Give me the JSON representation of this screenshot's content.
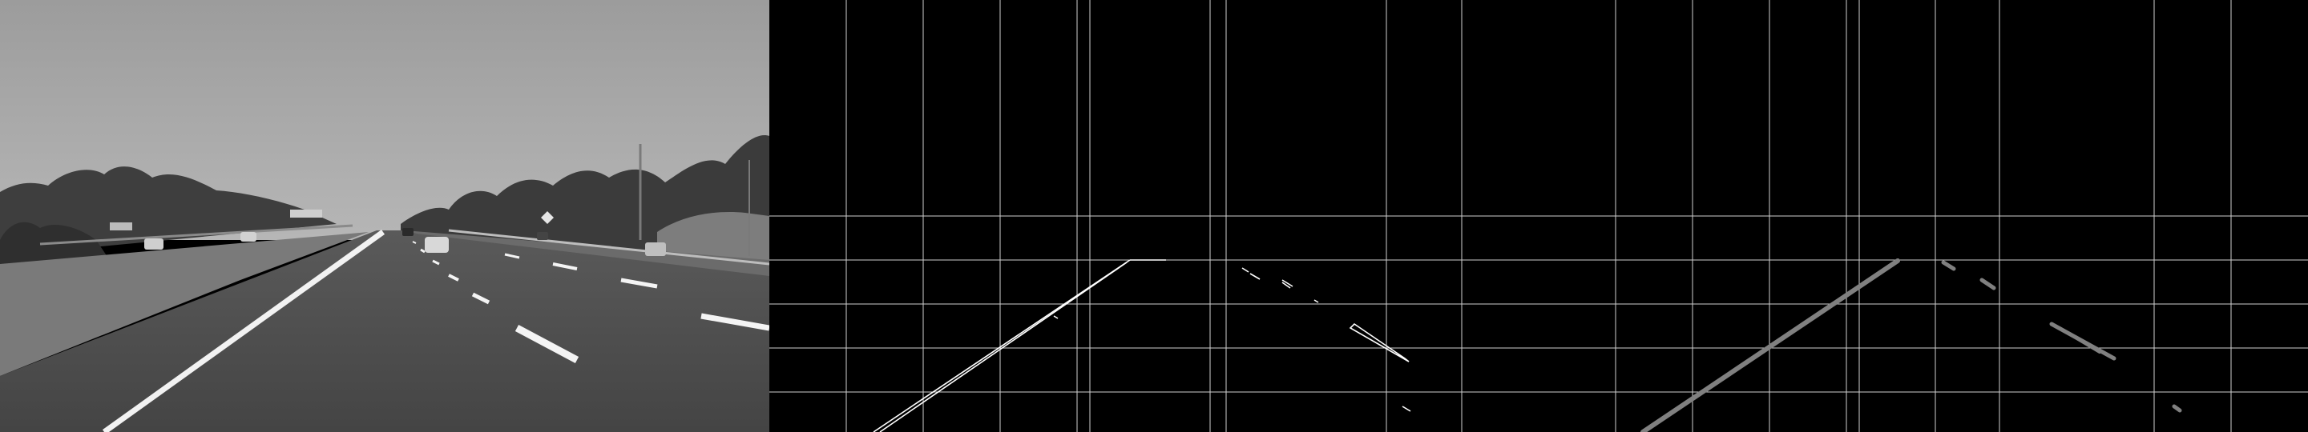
{
  "panels": [
    {
      "name": "grayscale-road-photo"
    },
    {
      "name": "canny-edge-map"
    },
    {
      "name": "hough-line-segments"
    }
  ],
  "colors": {
    "sky": "#a9a9a9",
    "road": "#4b4b4b",
    "lane_marking": "#f4f4f4",
    "vegetation": "#3a3a3a",
    "edge": "#ffffff",
    "hough_segment": "#808080",
    "grid": "#cfcfcf",
    "background": "#000000"
  }
}
